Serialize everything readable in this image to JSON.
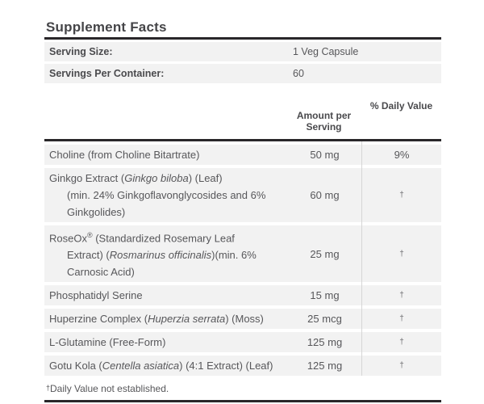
{
  "title": "Supplement Facts",
  "serving_info": {
    "rows": [
      {
        "label": "Serving Size:",
        "value": "1 Veg Capsule"
      },
      {
        "label": "Servings Per Container:",
        "value": "60"
      }
    ]
  },
  "main_table": {
    "columns": {
      "amount_line1": "Amount per",
      "amount_line2": "Serving",
      "daily_value": "% Daily Value"
    },
    "rows": [
      {
        "name_lines": [
          [
            {
              "t": "Choline (from Choline Bitartrate)"
            }
          ]
        ],
        "amount": "50 mg",
        "dv": "9%"
      },
      {
        "name_lines": [
          [
            {
              "t": "Ginkgo Extract ("
            },
            {
              "t": "Ginkgo biloba",
              "i": true
            },
            {
              "t": ") (Leaf)"
            }
          ],
          [
            {
              "t": "(min. 24% Ginkgoflavonglycosides and 6%"
            }
          ],
          [
            {
              "t": "Ginkgolides)"
            }
          ]
        ],
        "amount": "60 mg",
        "dv": "†"
      },
      {
        "name_lines": [
          [
            {
              "t": "RoseOx"
            },
            {
              "t": "®",
              "sup": true
            },
            {
              "t": " (Standardized Rosemary Leaf"
            }
          ],
          [
            {
              "t": "Extract) ("
            },
            {
              "t": "Rosmarinus officinalis",
              "i": true
            },
            {
              "t": ")(min. 6%"
            }
          ],
          [
            {
              "t": "Carnosic Acid)"
            }
          ]
        ],
        "amount": "25 mg",
        "dv": "†"
      },
      {
        "name_lines": [
          [
            {
              "t": "Phosphatidyl Serine"
            }
          ]
        ],
        "amount": "15 mg",
        "dv": "†"
      },
      {
        "name_lines": [
          [
            {
              "t": "Huperzine Complex ("
            },
            {
              "t": "Huperzia serrata",
              "i": true
            },
            {
              "t": ") (Moss)"
            }
          ]
        ],
        "amount": "25 mcg",
        "dv": "†"
      },
      {
        "name_lines": [
          [
            {
              "t": "L-Glutamine (Free-Form)"
            }
          ]
        ],
        "amount": "125 mg",
        "dv": "†"
      },
      {
        "name_lines": [
          [
            {
              "t": "Gotu Kola ("
            },
            {
              "t": "Centella asiatica",
              "i": true
            },
            {
              "t": ") (4:1 Extract) (Leaf)"
            }
          ]
        ],
        "amount": "125 mg",
        "dv": "†"
      }
    ]
  },
  "footnote": {
    "dagger": "†",
    "text": "Daily Value not established."
  },
  "colors": {
    "row_background": "#f2f2f2",
    "text": "#57575a",
    "heading_text": "#454548",
    "rule": "#29272a",
    "divider": "#d6d6d6"
  }
}
